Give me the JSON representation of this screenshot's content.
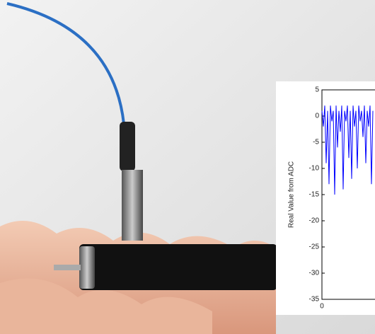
{
  "chart_data": {
    "type": "line",
    "y_label": "Real Value from ADC",
    "x": [
      0,
      0.5,
      1,
      1.5,
      2,
      2.5,
      3,
      3.5,
      4,
      4.5,
      5,
      5.5,
      6,
      6.5,
      7,
      7.5,
      8,
      8.5,
      9,
      9.5,
      10,
      10.5,
      11,
      11.5,
      12,
      12.5,
      13,
      13.5,
      14,
      14.5,
      15,
      15.5,
      16,
      16.5,
      17,
      17.5,
      18
    ],
    "values": [
      1,
      -2,
      2,
      -9,
      1,
      -13,
      2,
      -1,
      1,
      -15,
      2,
      -6,
      1,
      -3,
      2,
      -14,
      1,
      -1,
      2,
      -8,
      1,
      -12,
      2,
      -2,
      1,
      -10,
      2,
      -1,
      1,
      -4,
      2,
      -9,
      1,
      -2,
      2,
      -13,
      1
    ],
    "color": "#0000ff",
    "xlim": [
      0,
      100
    ],
    "xticks": [
      0
    ],
    "ylim": [
      -35,
      5
    ],
    "yticks": [
      5,
      0,
      -5,
      -10,
      -15,
      -20,
      -25,
      -30,
      -35
    ]
  }
}
